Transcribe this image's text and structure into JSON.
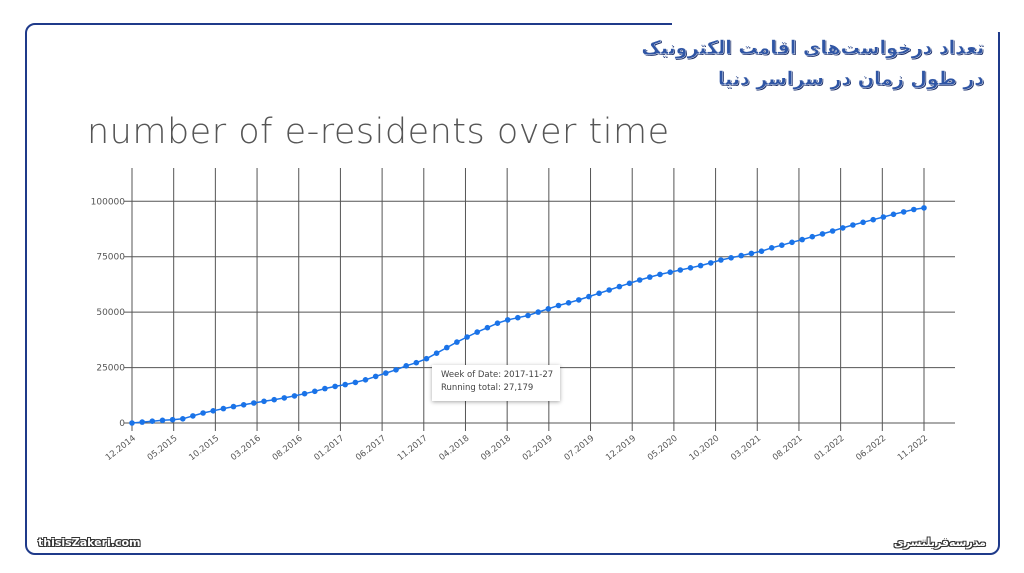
{
  "page": {
    "fa_title_line1": "تعداد درخواست‌های اقامت الکترونیک",
    "fa_title_line2": "در طول زمان در سراسر دنیا",
    "website": "thisisZakeri.com",
    "brand_fa": "مدرسه‌فریلنسری"
  },
  "tooltip": {
    "line1": "Week of Date: 2017-11-27",
    "line2": "Running total: 27,179"
  },
  "colors": {
    "line": "#1a73e8",
    "grid": "#555555",
    "frame": "#1f3a8a",
    "title": "#2f55a4"
  },
  "chart_data": {
    "type": "line",
    "title": "number of e-residents over time",
    "xlabel": "",
    "ylabel": "",
    "ylim": [
      0,
      115000
    ],
    "yticks": [
      0,
      25000,
      50000,
      75000,
      100000
    ],
    "ytick_labels": [
      "0",
      "25000",
      "50000",
      "75000",
      "100000"
    ],
    "x_tick_labels": [
      "12.2014",
      "05.2015",
      "10.2015",
      "03.2016",
      "08.2016",
      "01.2017",
      "06.2017",
      "11.2017",
      "04.2018",
      "09.2018",
      "02.2019",
      "07.2019",
      "12.2019",
      "05.2020",
      "10.2020",
      "03.2021",
      "08.2021",
      "01.2022",
      "06.2022",
      "11.2022"
    ],
    "grid": true,
    "legend": "none",
    "series": [
      {
        "values": [
          0,
          400,
          800,
          1200,
          1500,
          1900,
          3200,
          4500,
          5500,
          6500,
          7400,
          8200,
          9000,
          9800,
          10500,
          11300,
          12200,
          13200,
          14300,
          15500,
          16500,
          17300,
          18300,
          19500,
          21000,
          22500,
          24000,
          25800,
          27179,
          29000,
          31500,
          34000,
          36500,
          38800,
          41000,
          43000,
          45000,
          46500,
          47500,
          48500,
          50000,
          51500,
          53000,
          54200,
          55500,
          57000,
          58500,
          60000,
          61500,
          63000,
          64500,
          65800,
          67000,
          68000,
          69000,
          70000,
          71000,
          72200,
          73500,
          74500,
          75500,
          76500,
          77500,
          79000,
          80200,
          81500,
          82700,
          84000,
          85300,
          86600,
          88000,
          89300,
          90500,
          91700,
          92900,
          94100,
          95200,
          96300,
          97000
        ]
      }
    ]
  }
}
